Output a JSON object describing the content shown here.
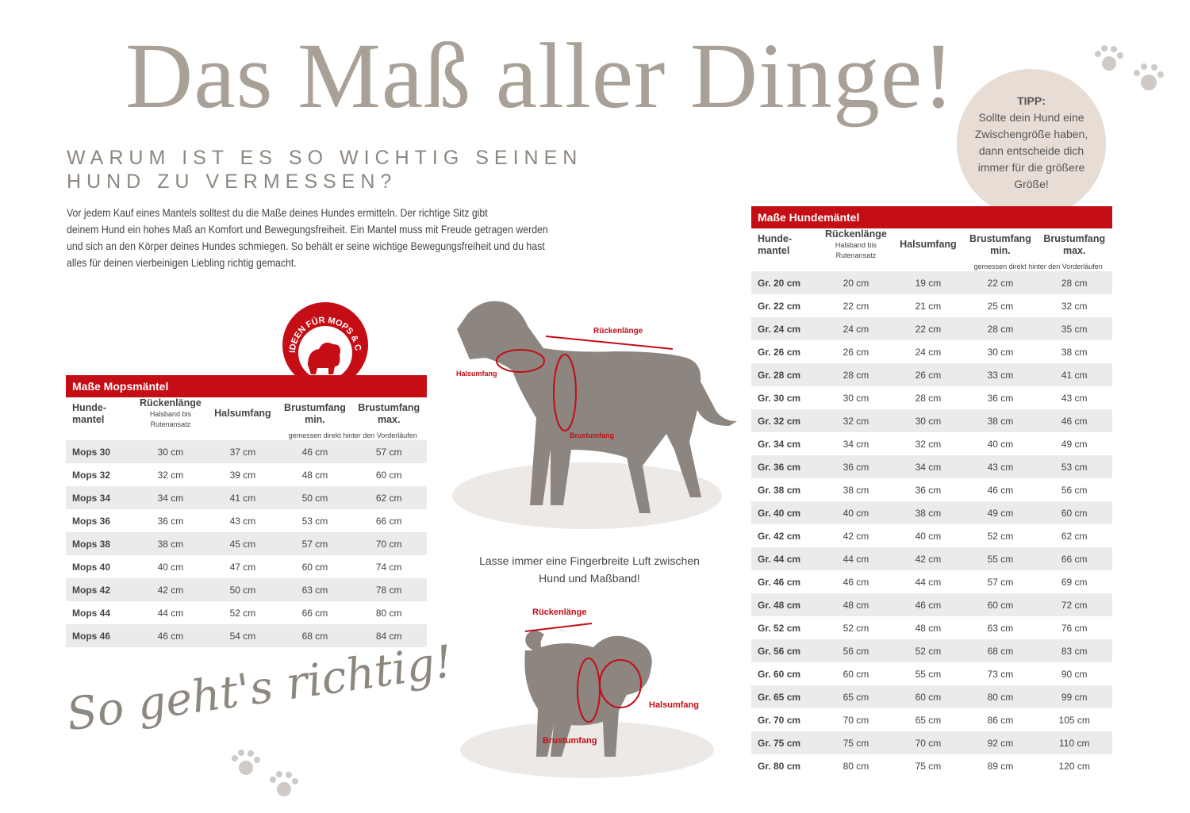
{
  "header": {
    "title": "Das Maß aller Dinge!",
    "subtitle_lines": [
      "WARUM IST ES SO WICHTIG SEINEN",
      "HUND ZU VERMESSEN?"
    ],
    "intro_lines": [
      "Vor jedem Kauf eines Mantels solltest du die Maße deines Hundes ermitteln. Der richtige Sitz gibt",
      "deinem Hund ein hohes Maß an Komfort und Bewegungsfreiheit. Ein Mantel muss mit Freude getragen werden",
      "und sich an den Körper deines Hundes schmiegen. So behält er seine wichtige Bewegungsfreiheit und du hast",
      "alles für deinen vierbeinigen Liebling richtig gemacht."
    ]
  },
  "tip": {
    "heading": "TIPP:",
    "lines": [
      "Sollte dein Hund eine",
      "Zwischengröße haben,",
      "dann entscheide dich",
      "immer für die größere",
      "Größe!"
    ]
  },
  "badge": "IDEEN FÜR MOPS & CO.",
  "mops_table": {
    "title": "Maße Mopsmäntel",
    "columns": [
      {
        "lines": [
          "Hunde-",
          "mantel"
        ]
      },
      {
        "lines": [
          "Rückenlänge"
        ],
        "note": [
          "Halsband bis",
          "Rutenansatz"
        ]
      },
      {
        "lines": [
          "Halsumfang"
        ]
      },
      {
        "lines": [
          "Brustumfang",
          "min."
        ]
      },
      {
        "lines": [
          "Brustumfang",
          "max."
        ]
      }
    ],
    "columns_note": "gemessen direkt hinter den Vorderläufen",
    "rows": [
      [
        "Mops 30",
        "30 cm",
        "37 cm",
        "46 cm",
        "57 cm"
      ],
      [
        "Mops 32",
        "32 cm",
        "39 cm",
        "48 cm",
        "60 cm"
      ],
      [
        "Mops 34",
        "34 cm",
        "41 cm",
        "50 cm",
        "62 cm"
      ],
      [
        "Mops 36",
        "36 cm",
        "43 cm",
        "53 cm",
        "66 cm"
      ],
      [
        "Mops 38",
        "38 cm",
        "45 cm",
        "57 cm",
        "70 cm"
      ],
      [
        "Mops 40",
        "40 cm",
        "47 cm",
        "60 cm",
        "74 cm"
      ],
      [
        "Mops 42",
        "42 cm",
        "50 cm",
        "63 cm",
        "78 cm"
      ],
      [
        "Mops 44",
        "44 cm",
        "52 cm",
        "66 cm",
        "80 cm"
      ],
      [
        "Mops 46",
        "46 cm",
        "54 cm",
        "68 cm",
        "84 cm"
      ]
    ]
  },
  "hunde_table": {
    "title": "Maße Hundemäntel",
    "columns": [
      {
        "lines": [
          "Hunde-",
          "mantel"
        ]
      },
      {
        "lines": [
          "Rückenlänge"
        ],
        "note": [
          "Halsband bis",
          "Rutenansatz"
        ]
      },
      {
        "lines": [
          "Halsumfang"
        ]
      },
      {
        "lines": [
          "Brustumfang",
          "min."
        ]
      },
      {
        "lines": [
          "Brustumfang",
          "max."
        ]
      }
    ],
    "columns_note": "gemessen direkt hinter den Vorderläufen",
    "rows": [
      [
        "Gr. 20 cm",
        "20 cm",
        "19 cm",
        "22 cm",
        "28 cm"
      ],
      [
        "Gr. 22 cm",
        "22 cm",
        "21 cm",
        "25 cm",
        "32 cm"
      ],
      [
        "Gr. 24 cm",
        "24 cm",
        "22 cm",
        "28 cm",
        "35 cm"
      ],
      [
        "Gr. 26 cm",
        "26 cm",
        "24 cm",
        "30 cm",
        "38 cm"
      ],
      [
        "Gr. 28 cm",
        "28 cm",
        "26 cm",
        "33 cm",
        "41 cm"
      ],
      [
        "Gr. 30 cm",
        "30 cm",
        "28 cm",
        "36 cm",
        "43 cm"
      ],
      [
        "Gr. 32 cm",
        "32 cm",
        "30 cm",
        "38 cm",
        "46 cm"
      ],
      [
        "Gr. 34 cm",
        "34 cm",
        "32 cm",
        "40 cm",
        "49 cm"
      ],
      [
        "Gr. 36 cm",
        "36 cm",
        "34 cm",
        "43 cm",
        "53 cm"
      ],
      [
        "Gr. 38 cm",
        "38 cm",
        "36 cm",
        "46 cm",
        "56 cm"
      ],
      [
        "Gr. 40 cm",
        "40 cm",
        "38 cm",
        "49 cm",
        "60 cm"
      ],
      [
        "Gr. 42 cm",
        "42 cm",
        "40 cm",
        "52 cm",
        "62 cm"
      ],
      [
        "Gr. 44 cm",
        "44 cm",
        "42 cm",
        "55 cm",
        "66 cm"
      ],
      [
        "Gr. 46 cm",
        "46 cm",
        "44 cm",
        "57 cm",
        "69 cm"
      ],
      [
        "Gr. 48 cm",
        "48 cm",
        "46 cm",
        "60 cm",
        "72 cm"
      ],
      [
        "Gr. 52 cm",
        "52 cm",
        "48 cm",
        "63 cm",
        "76 cm"
      ],
      [
        "Gr. 56 cm",
        "56 cm",
        "52 cm",
        "68 cm",
        "83 cm"
      ],
      [
        "Gr. 60 cm",
        "60 cm",
        "55 cm",
        "73 cm",
        "90 cm"
      ],
      [
        "Gr. 65 cm",
        "65 cm",
        "60 cm",
        "80 cm",
        "99 cm"
      ],
      [
        "Gr. 70 cm",
        "70 cm",
        "65 cm",
        "86 cm",
        "105 cm"
      ],
      [
        "Gr. 75 cm",
        "75 cm",
        "70 cm",
        "92 cm",
        "110 cm"
      ],
      [
        "Gr. 80 cm",
        "80 cm",
        "75 cm",
        "89 cm",
        "120 cm"
      ]
    ]
  },
  "big_dog": {
    "back": "Rückenlänge",
    "neck": "Halsumfang",
    "chest": "Brustumfang"
  },
  "note_lines": [
    "Lasse immer eine Fingerbreite Luft zwischen",
    "Hund und Maßband!"
  ],
  "pug": {
    "back": "Rückenlänge",
    "neck": "Halsumfang",
    "chest": "Brustumfang"
  },
  "script_text": "So geht's richtig!"
}
